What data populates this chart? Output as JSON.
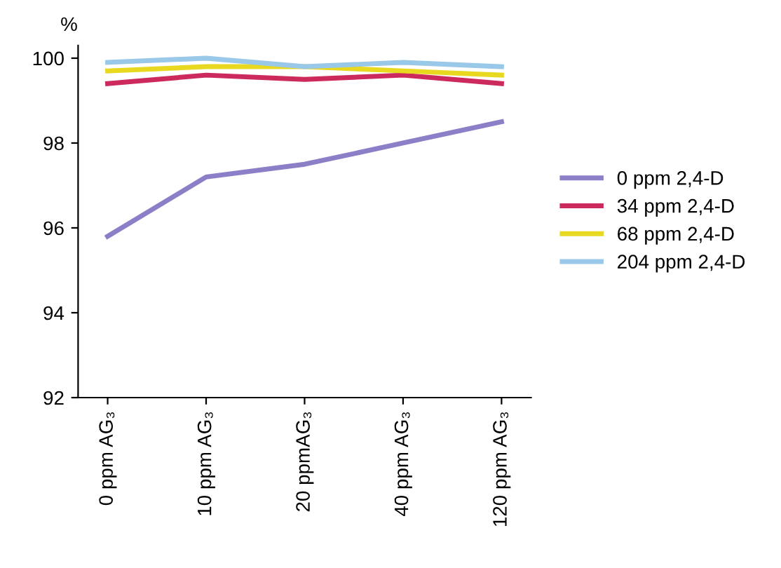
{
  "chart_data": {
    "type": "line",
    "ylabel": "%",
    "categories": [
      "0 ppm AG₃",
      "10 ppm AG₃",
      "20 ppmAG₃",
      "40 ppm AG₃",
      "120 ppm AG₃"
    ],
    "series": [
      {
        "name": "0 ppm 2,4-D",
        "color": "#8c7fc8",
        "values": [
          95.8,
          97.2,
          97.5,
          98.0,
          98.5
        ]
      },
      {
        "name": "34 ppm 2,4-D",
        "color": "#cc2a5c",
        "values": [
          99.4,
          99.6,
          99.5,
          99.6,
          99.4
        ]
      },
      {
        "name": "68 ppm 2,4-D",
        "color": "#e8d820",
        "values": [
          99.7,
          99.8,
          99.8,
          99.7,
          99.6
        ]
      },
      {
        "name": "204 ppm 2,4-D",
        "color": "#99c8e8",
        "values": [
          99.9,
          100,
          99.8,
          99.9,
          99.8
        ]
      }
    ],
    "ylim": [
      92,
      100.3
    ],
    "yticks": [
      92,
      94,
      96,
      98,
      100
    ],
    "grid": false,
    "legend": "right",
    "marker": "none",
    "line_style": "solid"
  }
}
